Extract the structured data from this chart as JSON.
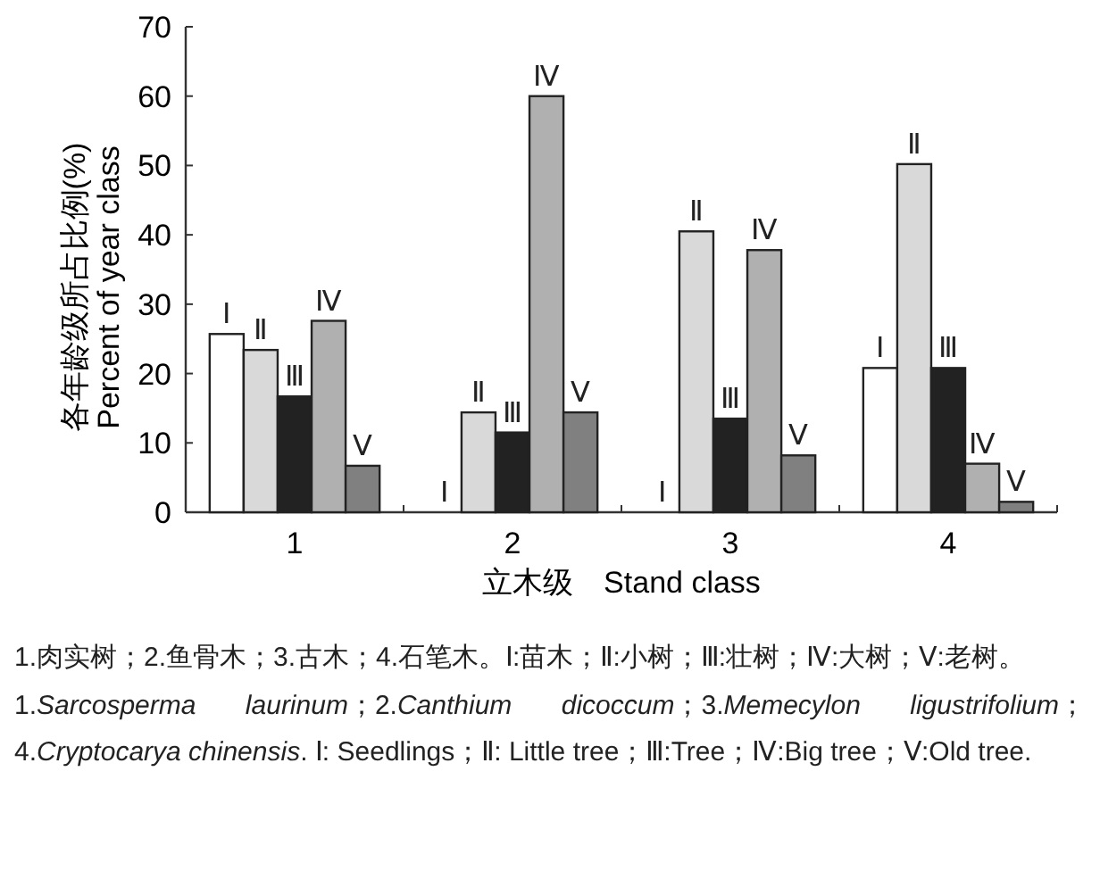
{
  "chart_data": {
    "type": "bar",
    "xlabel": "立木级　Stand class",
    "ylabel": "各年龄级所占比例(%)\nPercent of year class",
    "categories": [
      "1",
      "2",
      "3",
      "4"
    ],
    "series": [
      {
        "name": "Ⅰ",
        "color": "#ffffff",
        "values": [
          25.7,
          0,
          0,
          20.8
        ]
      },
      {
        "name": "Ⅱ",
        "color": "#d9d9d9",
        "values": [
          23.4,
          14.4,
          40.5,
          50.2
        ]
      },
      {
        "name": "Ⅲ",
        "color": "#222222",
        "values": [
          16.7,
          11.5,
          13.5,
          20.8
        ]
      },
      {
        "name": "Ⅳ",
        "color": "#b0b0b0",
        "values": [
          27.6,
          60,
          37.8,
          7
        ]
      },
      {
        "name": "Ⅴ",
        "color": "#808080",
        "values": [
          6.7,
          14.4,
          8.2,
          1.5
        ]
      }
    ],
    "ylim": [
      0,
      70
    ],
    "yticks": [
      0,
      10,
      20,
      30,
      40,
      50,
      60,
      70
    ],
    "annotations": [
      "1.肉实树；2.鱼骨木；3.古木；4.石笔木。Ⅰ:苗木；Ⅱ:小树；Ⅲ:壮树；Ⅳ:大树；Ⅴ:老树。",
      "1.*Sarcosperma laurinum*；2.*Canthium dicoccum*；3.*Memecylon ligustrifolium*；4.*Cryptocarya chinensis*. Ⅰ: Seedlings；Ⅱ: Little tree；Ⅲ:Tree；Ⅳ:Big tree；Ⅴ:Old tree."
    ]
  }
}
